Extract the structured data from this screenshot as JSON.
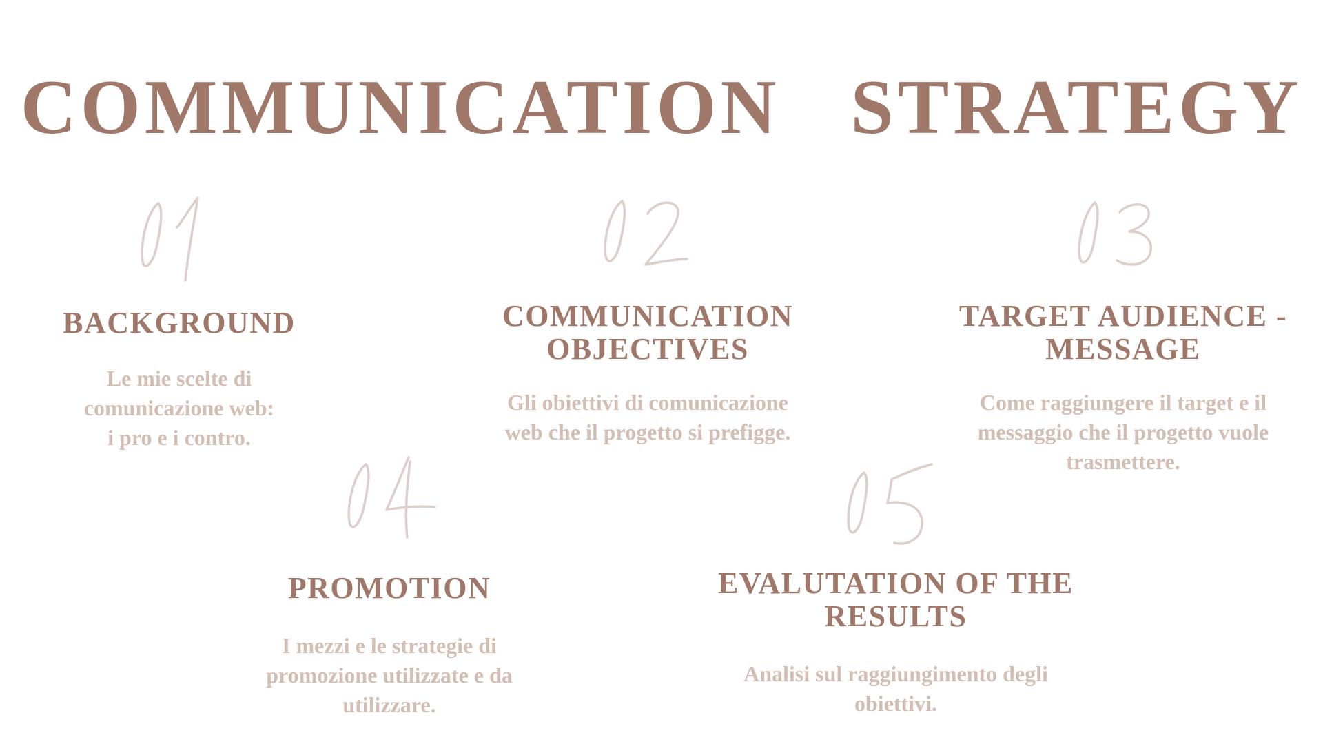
{
  "title": "COMMUNICATION   STRATEGY",
  "colors": {
    "title": "#a0786a",
    "heading": "#a0786a",
    "description": "#d3beb4",
    "numeral": "#ddd0ca",
    "background": "#ffffff"
  },
  "sections": [
    {
      "number": "01",
      "heading": "BACKGROUND",
      "description": [
        "Le mie scelte di",
        "comunicazione web:",
        "i pro e i contro."
      ]
    },
    {
      "number": "02",
      "heading": [
        "COMMUNICATION",
        "OBJECTIVES"
      ],
      "description": [
        "Gli obiettivi di comunicazione",
        "web che il progetto si prefigge."
      ]
    },
    {
      "number": "03",
      "heading": [
        "TARGET AUDIENCE -",
        "MESSAGE"
      ],
      "description": [
        "Come raggiungere il target e il",
        "messaggio che il progetto vuole",
        "trasmettere."
      ]
    },
    {
      "number": "04",
      "heading": "PROMOTION",
      "description": [
        "I mezzi e le strategie di",
        "promozione utilizzate e da",
        "utilizzare."
      ]
    },
    {
      "number": "05",
      "heading": [
        "EVALUTATION OF THE",
        "RESULTS"
      ],
      "description": [
        "Analisi sul raggiungimento degli",
        "obiettivi."
      ]
    }
  ]
}
